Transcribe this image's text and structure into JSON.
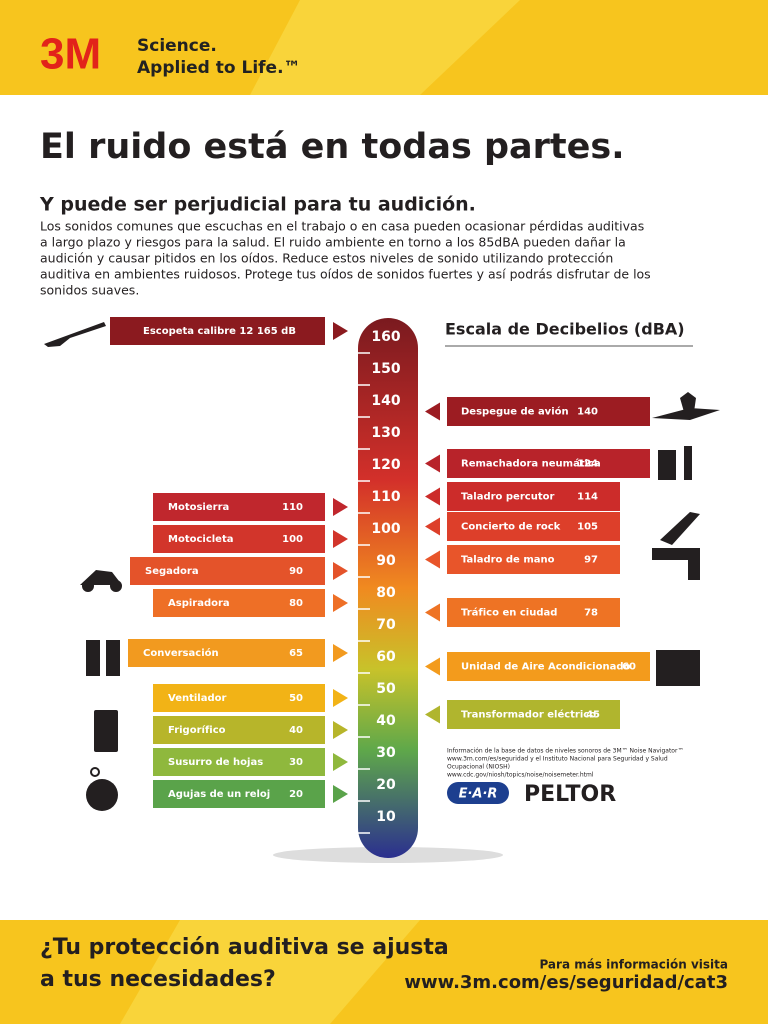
{
  "header": {
    "brand": "3M",
    "tagline_1": "Science.",
    "tagline_2": "Applied to Life.™"
  },
  "title": "El ruido está en todas partes.",
  "subtitle": "Y puede ser perjudicial para tu audición.",
  "body": [
    "Los sonidos comunes que escuchas en el trabajo o en casa pueden ocasionar pérdidas auditivas",
    "a largo plazo y riesgos para la salud. El ruido ambiente en torno a los 85dBA pueden dañar la",
    "audición y causar pitidos en los oídos. Reduce estos niveles de sonido utilizando protección",
    "auditiva en ambientes ruidosos. Protege tus oídos de sonidos fuertes y así podrás disfrutar de los",
    "sonidos suaves."
  ],
  "scale": {
    "title": "Escala de Decibelios (dBA)",
    "ticks": [
      160,
      150,
      140,
      130,
      120,
      110,
      100,
      90,
      80,
      70,
      60,
      50,
      40,
      30,
      20,
      10
    ]
  },
  "left_items": [
    {
      "label": "Escopeta calibre 12 165 dB"
    },
    {
      "label": "Motosierra",
      "value": 110
    },
    {
      "label": "Motocicleta",
      "value": 100
    },
    {
      "label": "Segadora",
      "value": 90
    },
    {
      "label": "Aspiradora",
      "value": 80
    },
    {
      "label": "Conversación",
      "value": 65
    },
    {
      "label": "Ventilador",
      "value": 50
    },
    {
      "label": "Frigorífico",
      "value": 40
    },
    {
      "label": "Susurro de hojas",
      "value": 30
    },
    {
      "label": "Agujas de un reloj",
      "value": 20
    }
  ],
  "right_items": [
    {
      "label": "Despegue de avión",
      "value": 140
    },
    {
      "label": "Remachadora neumática",
      "value": 124
    },
    {
      "label": "Taladro percutor",
      "value": 114
    },
    {
      "label": "Concierto de rock",
      "value": 105
    },
    {
      "label": "Taladro de mano",
      "value": 97
    },
    {
      "label": "Tráfico en ciudad",
      "value": 78
    },
    {
      "label": "Unidad de Aire Acondicionado",
      "value": 60
    },
    {
      "label": "Transformador eléctrico",
      "value": 45
    }
  ],
  "source": [
    "Información de la base de datos de niveles sonoros de 3M™ Noise Navigator™",
    "www.3m.com/es/seguridad y el Instituto Nacional para Seguridad y Salud",
    "Ocupacional (NIOSH)",
    "www.cdc.gov/niosh/topics/noise/noisemeter.html"
  ],
  "logos": [
    "E·A·R",
    "PELTOR"
  ],
  "footer": {
    "question": [
      "¿Tu protección auditiva se ajusta",
      "a tus necesidades?"
    ],
    "cta": "Para más información visita",
    "url": "www.3m.com/es/seguridad/cat3"
  }
}
